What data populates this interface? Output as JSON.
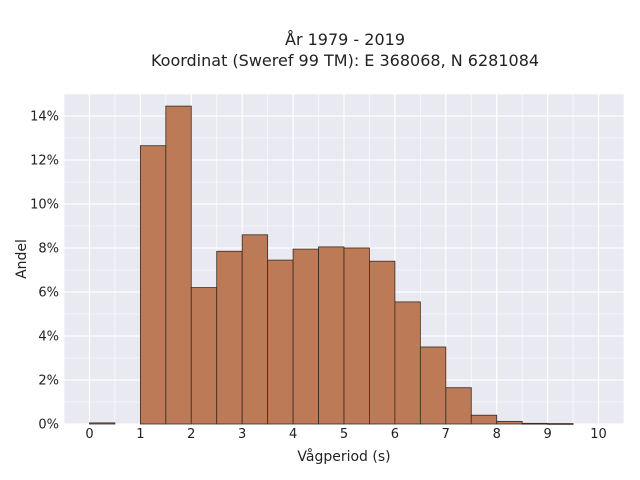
{
  "chart_data": {
    "type": "bar",
    "title_line1": "År 1979 - 2019",
    "title_line2": "Koordinat (Sweref 99 TM): E 368068, N 6281084",
    "xlabel": "Vågperiod (s)",
    "ylabel": "Andel",
    "xlim": [
      -0.5,
      10.5
    ],
    "ylim": [
      0,
      15
    ],
    "x_ticks": [
      "0",
      "1",
      "2",
      "3",
      "4",
      "5",
      "6",
      "7",
      "8",
      "9",
      "10"
    ],
    "y_ticks": [
      "0%",
      "2%",
      "4%",
      "6%",
      "8%",
      "10%",
      "12%",
      "14%"
    ],
    "bin_width": 0.5,
    "bins": [
      {
        "x_start": 0.0,
        "value": 0.05
      },
      {
        "x_start": 0.5,
        "value": 0.0
      },
      {
        "x_start": 1.0,
        "value": 12.65
      },
      {
        "x_start": 1.5,
        "value": 14.45
      },
      {
        "x_start": 2.0,
        "value": 6.2
      },
      {
        "x_start": 2.5,
        "value": 7.85
      },
      {
        "x_start": 3.0,
        "value": 8.6
      },
      {
        "x_start": 3.5,
        "value": 7.45
      },
      {
        "x_start": 4.0,
        "value": 7.95
      },
      {
        "x_start": 4.5,
        "value": 8.05
      },
      {
        "x_start": 5.0,
        "value": 8.0
      },
      {
        "x_start": 5.5,
        "value": 7.4
      },
      {
        "x_start": 6.0,
        "value": 5.55
      },
      {
        "x_start": 6.5,
        "value": 3.5
      },
      {
        "x_start": 7.0,
        "value": 1.65
      },
      {
        "x_start": 7.5,
        "value": 0.4
      },
      {
        "x_start": 8.0,
        "value": 0.12
      },
      {
        "x_start": 8.5,
        "value": 0.03
      },
      {
        "x_start": 9.0,
        "value": 0.02
      }
    ],
    "bar_color": "#bc7a56",
    "bar_edge_color": "#3a2a20",
    "plot_bg": "#e9e9f1",
    "grid": true,
    "grid_color": "#ffffff"
  }
}
